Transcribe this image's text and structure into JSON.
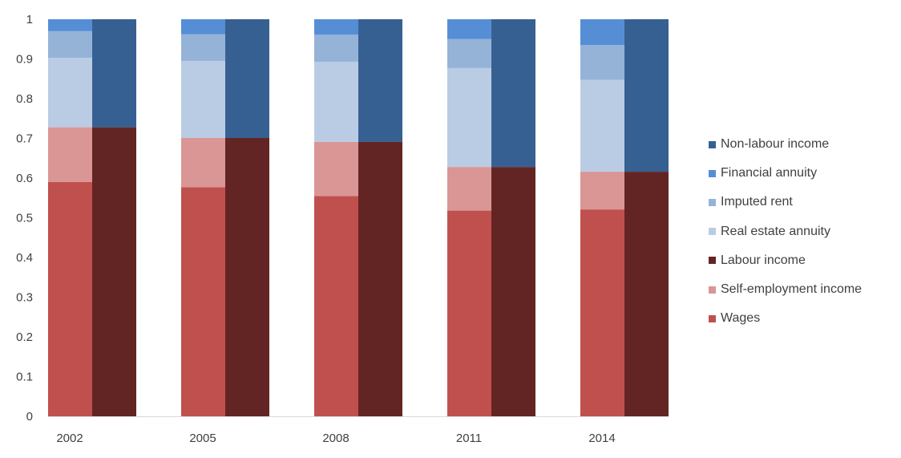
{
  "chart_data": {
    "type": "bar",
    "stacked": true,
    "categories": [
      "2002",
      "2005",
      "2008",
      "2011",
      "2014"
    ],
    "ylim": [
      0,
      1
    ],
    "yticks": [
      "0",
      "0.1",
      "0.2",
      "0.3",
      "0.4",
      "0.5",
      "0.6",
      "0.7",
      "0.8",
      "0.9",
      "1"
    ],
    "grid": false,
    "legend_position": "right",
    "stacks": [
      {
        "segments": [
          {
            "name": "Wages",
            "color": "#c0504d",
            "values": [
              0.59,
              0.577,
              0.555,
              0.518,
              0.521
            ]
          },
          {
            "name": "Self-employment income",
            "color": "#d99694",
            "values": [
              0.138,
              0.124,
              0.136,
              0.11,
              0.095
            ]
          },
          {
            "name": "Real estate annuity",
            "color": "#bacce4",
            "values": [
              0.175,
              0.194,
              0.202,
              0.249,
              0.231
            ]
          },
          {
            "name": "Imputed rent",
            "color": "#95b3d7",
            "values": [
              0.067,
              0.067,
              0.068,
              0.073,
              0.088
            ]
          },
          {
            "name": "Financial annuity",
            "color": "#558ed5",
            "values": [
              0.03,
              0.038,
              0.039,
              0.05,
              0.065
            ]
          }
        ]
      },
      {
        "segments": [
          {
            "name": "Labour income",
            "color": "#632523",
            "values": [
              0.728,
              0.701,
              0.691,
              0.628,
              0.616
            ]
          },
          {
            "name": "Non-labour income",
            "color": "#376092",
            "values": [
              0.272,
              0.299,
              0.309,
              0.372,
              0.384
            ]
          }
        ]
      }
    ],
    "legend": [
      {
        "label": "Non-labour income",
        "color": "#376092"
      },
      {
        "label": "Financial annuity",
        "color": "#558ed5"
      },
      {
        "label": "Imputed rent",
        "color": "#95b3d7"
      },
      {
        "label": "Real estate annuity",
        "color": "#bacce4"
      },
      {
        "label": "Labour income",
        "color": "#632523"
      },
      {
        "label": "Self-employment income",
        "color": "#d99694"
      },
      {
        "label": "Wages",
        "color": "#c0504d"
      }
    ],
    "axis_color": "#d9d9d9"
  }
}
